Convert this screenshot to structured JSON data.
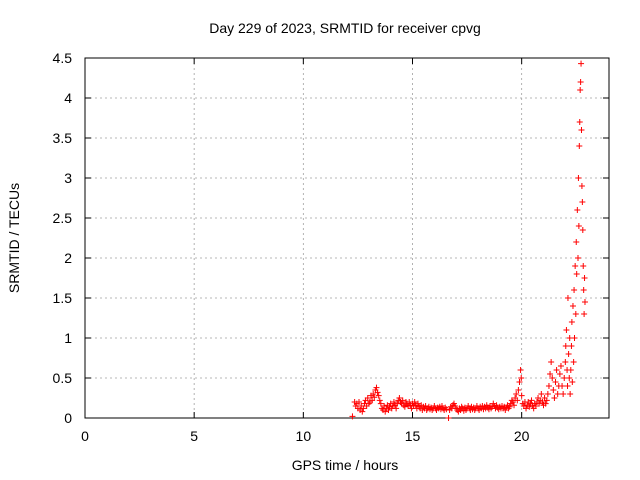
{
  "chart_data": {
    "type": "scatter",
    "title": "Day 229 of 2023, SRMTID for receiver cpvg",
    "xlabel": "GPS time / hours",
    "ylabel": "SRMTID / TECUs",
    "xlim": [
      0,
      24
    ],
    "ylim": [
      0,
      4.5
    ],
    "xticks": [
      0,
      5,
      10,
      15,
      20
    ],
    "xtick_labels": [
      "0",
      "5",
      "10",
      "15",
      "20"
    ],
    "yticks": [
      0,
      0.5,
      1,
      1.5,
      2,
      2.5,
      3,
      3.5,
      4,
      4.5
    ],
    "ytick_labels": [
      "0",
      "0.5",
      "1",
      "1.5",
      "2",
      "2.5",
      "3",
      "3.5",
      "4",
      "4.5"
    ],
    "grid": true,
    "marker": "+",
    "series": [
      {
        "name": "SRMTID",
        "color": "#ff0000",
        "points": [
          [
            12.25,
            0.02
          ],
          [
            12.35,
            0.2
          ],
          [
            12.4,
            0.15
          ],
          [
            12.45,
            0.18
          ],
          [
            12.5,
            0.12
          ],
          [
            12.55,
            0.2
          ],
          [
            12.6,
            0.1
          ],
          [
            12.65,
            0.15
          ],
          [
            12.7,
            0.08
          ],
          [
            12.75,
            0.12
          ],
          [
            12.8,
            0.18
          ],
          [
            12.85,
            0.22
          ],
          [
            12.9,
            0.15
          ],
          [
            12.95,
            0.25
          ],
          [
            13.0,
            0.18
          ],
          [
            13.05,
            0.2
          ],
          [
            13.1,
            0.28
          ],
          [
            13.15,
            0.22
          ],
          [
            13.2,
            0.3
          ],
          [
            13.25,
            0.26
          ],
          [
            13.3,
            0.35
          ],
          [
            13.35,
            0.38
          ],
          [
            13.4,
            0.32
          ],
          [
            13.45,
            0.28
          ],
          [
            13.5,
            0.22
          ],
          [
            13.55,
            0.18
          ],
          [
            13.6,
            0.12
          ],
          [
            13.65,
            0.1
          ],
          [
            13.7,
            0.15
          ],
          [
            13.75,
            0.08
          ],
          [
            13.8,
            0.12
          ],
          [
            13.85,
            0.16
          ],
          [
            13.9,
            0.1
          ],
          [
            13.95,
            0.14
          ],
          [
            14.0,
            0.18
          ],
          [
            14.05,
            0.12
          ],
          [
            14.1,
            0.15
          ],
          [
            14.15,
            0.2
          ],
          [
            14.2,
            0.16
          ],
          [
            14.25,
            0.12
          ],
          [
            14.3,
            0.18
          ],
          [
            14.35,
            0.22
          ],
          [
            14.4,
            0.25
          ],
          [
            14.45,
            0.2
          ],
          [
            14.5,
            0.18
          ],
          [
            14.55,
            0.22
          ],
          [
            14.6,
            0.16
          ],
          [
            14.65,
            0.14
          ],
          [
            14.7,
            0.2
          ],
          [
            14.75,
            0.18
          ],
          [
            14.8,
            0.15
          ],
          [
            14.85,
            0.2
          ],
          [
            14.9,
            0.16
          ],
          [
            14.95,
            0.12
          ],
          [
            15.0,
            0.18
          ],
          [
            15.05,
            0.15
          ],
          [
            15.1,
            0.2
          ],
          [
            15.15,
            0.16
          ],
          [
            15.2,
            0.12
          ],
          [
            15.25,
            0.18
          ],
          [
            15.3,
            0.14
          ],
          [
            15.35,
            0.12
          ],
          [
            15.4,
            0.16
          ],
          [
            15.45,
            0.1
          ],
          [
            15.5,
            0.14
          ],
          [
            15.55,
            0.12
          ],
          [
            15.6,
            0.15
          ],
          [
            15.65,
            0.1
          ],
          [
            15.7,
            0.12
          ],
          [
            15.75,
            0.14
          ],
          [
            15.8,
            0.11
          ],
          [
            15.85,
            0.13
          ],
          [
            15.9,
            0.1
          ],
          [
            15.95,
            0.12
          ],
          [
            16.0,
            0.15
          ],
          [
            16.05,
            0.12
          ],
          [
            16.1,
            0.1
          ],
          [
            16.15,
            0.13
          ],
          [
            16.2,
            0.12
          ],
          [
            16.25,
            0.14
          ],
          [
            16.3,
            0.11
          ],
          [
            16.35,
            0.15
          ],
          [
            16.4,
            0.12
          ],
          [
            16.45,
            0.1
          ],
          [
            16.5,
            0.13
          ],
          [
            16.55,
            0.11
          ],
          [
            16.65,
            0.0
          ],
          [
            16.7,
            0.1
          ],
          [
            16.75,
            0.14
          ],
          [
            16.8,
            0.12
          ],
          [
            16.85,
            0.16
          ],
          [
            16.9,
            0.18
          ],
          [
            16.95,
            0.15
          ],
          [
            17.0,
            0.12
          ],
          [
            17.05,
            0.1
          ],
          [
            17.1,
            0.08
          ],
          [
            17.15,
            0.12
          ],
          [
            17.2,
            0.1
          ],
          [
            17.25,
            0.14
          ],
          [
            17.3,
            0.12
          ],
          [
            17.35,
            0.09
          ],
          [
            17.4,
            0.13
          ],
          [
            17.45,
            0.1
          ],
          [
            17.5,
            0.12
          ],
          [
            17.55,
            0.15
          ],
          [
            17.6,
            0.12
          ],
          [
            17.65,
            0.1
          ],
          [
            17.7,
            0.14
          ],
          [
            17.75,
            0.11
          ],
          [
            17.8,
            0.13
          ],
          [
            17.85,
            0.1
          ],
          [
            17.9,
            0.12
          ],
          [
            17.95,
            0.15
          ],
          [
            18.0,
            0.12
          ],
          [
            18.05,
            0.1
          ],
          [
            18.1,
            0.14
          ],
          [
            18.15,
            0.12
          ],
          [
            18.2,
            0.15
          ],
          [
            18.25,
            0.11
          ],
          [
            18.3,
            0.14
          ],
          [
            18.35,
            0.12
          ],
          [
            18.4,
            0.16
          ],
          [
            18.45,
            0.13
          ],
          [
            18.5,
            0.11
          ],
          [
            18.55,
            0.15
          ],
          [
            18.6,
            0.12
          ],
          [
            18.65,
            0.14
          ],
          [
            18.7,
            0.18
          ],
          [
            18.75,
            0.15
          ],
          [
            18.8,
            0.12
          ],
          [
            18.85,
            0.16
          ],
          [
            18.9,
            0.13
          ],
          [
            18.95,
            0.11
          ],
          [
            19.0,
            0.14
          ],
          [
            19.05,
            0.12
          ],
          [
            19.1,
            0.15
          ],
          [
            19.15,
            0.12
          ],
          [
            19.2,
            0.14
          ],
          [
            19.25,
            0.1
          ],
          [
            19.3,
            0.13
          ],
          [
            19.35,
            0.16
          ],
          [
            19.4,
            0.12
          ],
          [
            19.45,
            0.14
          ],
          [
            19.5,
            0.18
          ],
          [
            19.55,
            0.22
          ],
          [
            19.6,
            0.2
          ],
          [
            19.65,
            0.16
          ],
          [
            19.7,
            0.25
          ],
          [
            19.75,
            0.3
          ],
          [
            19.8,
            0.22
          ],
          [
            19.85,
            0.35
          ],
          [
            19.9,
            0.45
          ],
          [
            19.95,
            0.6
          ],
          [
            19.98,
            0.5
          ],
          [
            20.0,
            0.28
          ],
          [
            20.05,
            0.18
          ],
          [
            20.1,
            0.15
          ],
          [
            20.15,
            0.2
          ],
          [
            20.2,
            0.12
          ],
          [
            20.25,
            0.16
          ],
          [
            20.3,
            0.2
          ],
          [
            20.35,
            0.14
          ],
          [
            20.4,
            0.18
          ],
          [
            20.45,
            0.22
          ],
          [
            20.5,
            0.16
          ],
          [
            20.55,
            0.12
          ],
          [
            20.6,
            0.18
          ],
          [
            20.65,
            0.15
          ],
          [
            20.7,
            0.2
          ],
          [
            20.75,
            0.25
          ],
          [
            20.8,
            0.18
          ],
          [
            20.85,
            0.22
          ],
          [
            20.9,
            0.3
          ],
          [
            20.95,
            0.2
          ],
          [
            21.0,
            0.16
          ],
          [
            21.05,
            0.25
          ],
          [
            21.1,
            0.18
          ],
          [
            21.15,
            0.22
          ],
          [
            21.2,
            0.3
          ],
          [
            21.25,
            0.4
          ],
          [
            21.3,
            0.55
          ],
          [
            21.35,
            0.7
          ],
          [
            21.4,
            0.5
          ],
          [
            21.45,
            0.35
          ],
          [
            21.5,
            0.25
          ],
          [
            21.55,
            0.45
          ],
          [
            21.6,
            0.6
          ],
          [
            21.65,
            0.3
          ],
          [
            21.7,
            0.4
          ],
          [
            21.75,
            0.55
          ],
          [
            21.8,
            0.65
          ],
          [
            21.85,
            0.4
          ],
          [
            21.9,
            0.3
          ],
          [
            21.95,
            0.5
          ],
          [
            22.0,
            0.7
          ],
          [
            22.02,
            0.9
          ],
          [
            22.05,
            1.1
          ],
          [
            22.08,
            0.6
          ],
          [
            22.1,
            0.4
          ],
          [
            22.12,
            1.5
          ],
          [
            22.15,
            0.8
          ],
          [
            22.18,
            0.5
          ],
          [
            22.2,
            1.0
          ],
          [
            22.22,
            0.3
          ],
          [
            22.25,
            0.6
          ],
          [
            22.28,
            0.9
          ],
          [
            22.3,
            1.2
          ],
          [
            22.32,
            0.45
          ],
          [
            22.35,
            1.4
          ],
          [
            22.38,
            0.7
          ],
          [
            22.4,
            1.6
          ],
          [
            22.42,
            1.0
          ],
          [
            22.45,
            1.9
          ],
          [
            22.48,
            1.3
          ],
          [
            22.5,
            2.2
          ],
          [
            22.52,
            1.8
          ],
          [
            22.55,
            2.6
          ],
          [
            22.58,
            2.0
          ],
          [
            22.6,
            3.0
          ],
          [
            22.62,
            2.4
          ],
          [
            22.64,
            3.4
          ],
          [
            22.66,
            3.7
          ],
          [
            22.68,
            4.1
          ],
          [
            22.7,
            4.2
          ],
          [
            22.72,
            4.43
          ],
          [
            22.74,
            3.6
          ],
          [
            22.76,
            2.9
          ],
          [
            22.78,
            2.7
          ],
          [
            22.8,
            2.35
          ],
          [
            22.82,
            1.9
          ],
          [
            22.84,
            1.6
          ],
          [
            22.86,
            1.3
          ],
          [
            22.88,
            1.75
          ],
          [
            22.9,
            1.45
          ]
        ]
      }
    ]
  }
}
